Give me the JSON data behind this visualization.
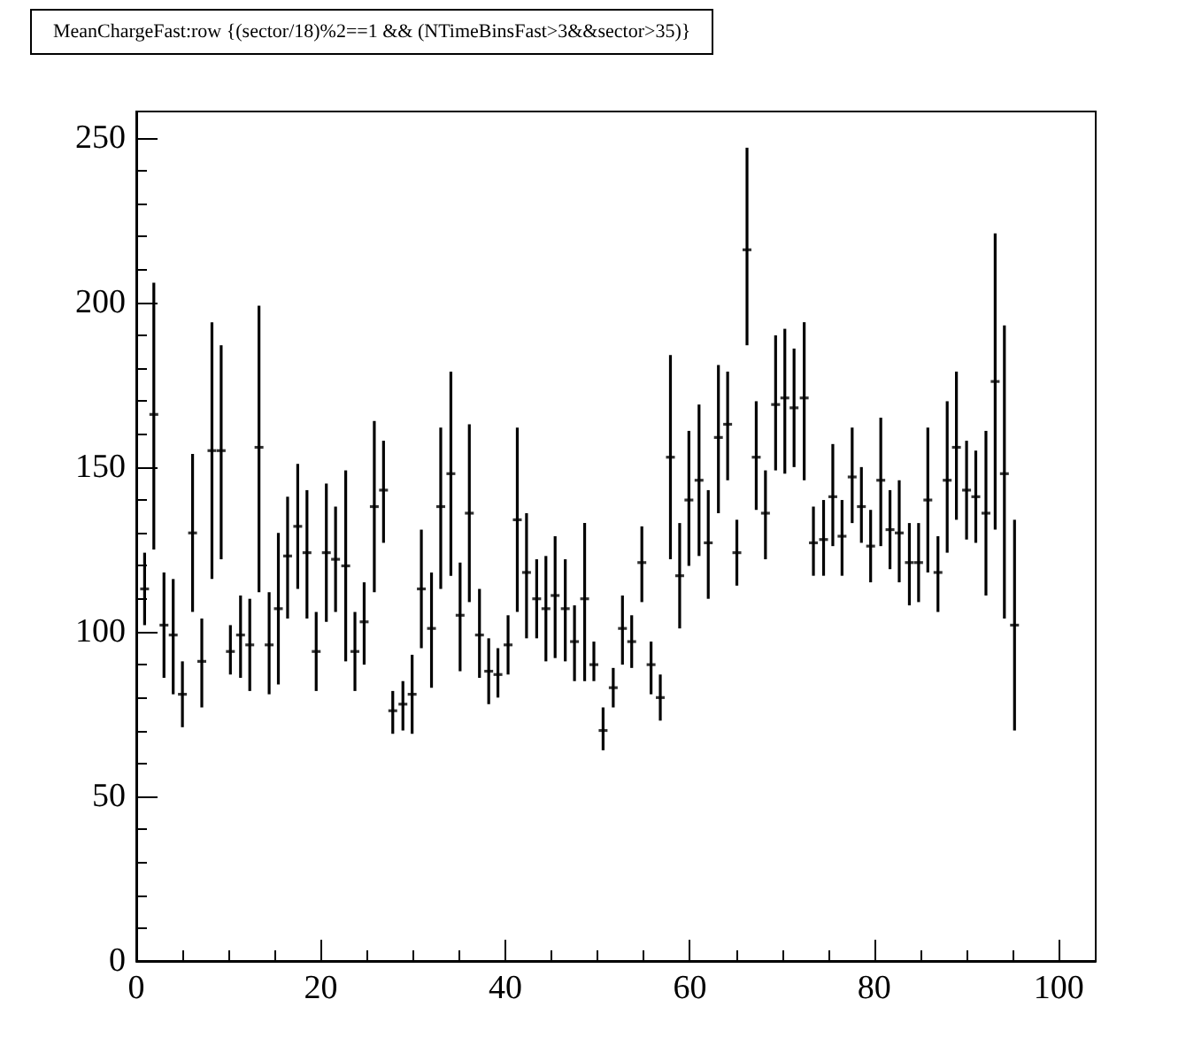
{
  "chart_data": {
    "type": "scatter",
    "title": "MeanChargeFast:row {(sector/18)%2==1 && (NTimeBinsFast>3&&sector>35)}",
    "color": "#000000",
    "x": [
      0.9,
      1.9,
      3.0,
      4.0,
      5.0,
      6.1,
      7.1,
      8.2,
      9.2,
      10.2,
      11.3,
      12.3,
      13.3,
      14.4,
      15.4,
      16.4,
      17.5,
      18.5,
      19.5,
      20.6,
      21.6,
      22.7,
      23.7,
      24.7,
      25.8,
      26.8,
      27.8,
      28.9,
      29.9,
      30.9,
      32.0,
      33.0,
      34.1,
      35.1,
      36.1,
      37.2,
      38.2,
      39.2,
      40.3,
      41.3,
      42.3,
      43.4,
      44.4,
      45.4,
      46.5,
      47.5,
      48.6,
      49.6,
      50.6,
      51.7,
      52.7,
      53.7,
      54.8,
      55.8,
      56.8,
      57.9,
      58.9,
      59.9,
      61.0,
      62.0,
      63.1,
      64.1,
      65.1,
      66.2,
      67.2,
      68.2,
      69.3,
      70.3,
      71.3,
      72.4,
      73.4,
      74.5,
      75.5,
      76.5,
      77.6,
      78.6,
      79.6,
      80.7,
      81.7,
      82.7,
      83.8,
      84.8,
      85.8,
      86.9,
      87.9,
      88.9,
      90.0,
      91.0,
      92.1,
      93.1,
      94.1,
      95.2
    ],
    "values": [
      113,
      166,
      102,
      99,
      81,
      130,
      91,
      155,
      155,
      94,
      99,
      96,
      156,
      96,
      107,
      123,
      132,
      124,
      94,
      124,
      122,
      120,
      94,
      103,
      138,
      143,
      76,
      78,
      81,
      113,
      101,
      138,
      148,
      105,
      136,
      99,
      88,
      87,
      96,
      134,
      118,
      110,
      107,
      111,
      107,
      97,
      110,
      90,
      70,
      83,
      101,
      97,
      121,
      90,
      80,
      153,
      117,
      140,
      146,
      127,
      159,
      163,
      124,
      216,
      153,
      136,
      169,
      171,
      168,
      171,
      127,
      128,
      141,
      129,
      147,
      138,
      126,
      146,
      131,
      130,
      121,
      121,
      140,
      118,
      146,
      156,
      143,
      141,
      136,
      176,
      148,
      102
    ],
    "errors": [
      [
        102,
        124
      ],
      [
        125,
        206
      ],
      [
        86,
        118
      ],
      [
        81,
        116
      ],
      [
        71,
        91
      ],
      [
        106,
        154
      ],
      [
        77,
        104
      ],
      [
        116,
        194
      ],
      [
        122,
        187
      ],
      [
        87,
        102
      ],
      [
        86,
        111
      ],
      [
        82,
        110
      ],
      [
        112,
        199
      ],
      [
        81,
        112
      ],
      [
        84,
        130
      ],
      [
        104,
        141
      ],
      [
        113,
        151
      ],
      [
        104,
        143
      ],
      [
        82,
        106
      ],
      [
        103,
        145
      ],
      [
        106,
        138
      ],
      [
        91,
        149
      ],
      [
        82,
        106
      ],
      [
        90,
        115
      ],
      [
        112,
        164
      ],
      [
        127,
        158
      ],
      [
        69,
        82
      ],
      [
        70,
        85
      ],
      [
        69,
        93
      ],
      [
        95,
        131
      ],
      [
        83,
        118
      ],
      [
        113,
        162
      ],
      [
        117,
        179
      ],
      [
        88,
        121
      ],
      [
        109,
        163
      ],
      [
        86,
        113
      ],
      [
        78,
        98
      ],
      [
        80,
        95
      ],
      [
        87,
        105
      ],
      [
        106,
        162
      ],
      [
        98,
        136
      ],
      [
        98,
        122
      ],
      [
        91,
        123
      ],
      [
        92,
        129
      ],
      [
        91,
        122
      ],
      [
        85,
        108
      ],
      [
        85,
        133
      ],
      [
        85,
        97
      ],
      [
        64,
        77
      ],
      [
        77,
        89
      ],
      [
        90,
        111
      ],
      [
        89,
        105
      ],
      [
        109,
        132
      ],
      [
        81,
        97
      ],
      [
        73,
        87
      ],
      [
        122,
        184
      ],
      [
        101,
        133
      ],
      [
        120,
        161
      ],
      [
        123,
        169
      ],
      [
        110,
        143
      ],
      [
        136,
        181
      ],
      [
        146,
        179
      ],
      [
        114,
        134
      ],
      [
        187,
        247
      ],
      [
        137,
        170
      ],
      [
        122,
        149
      ],
      [
        149,
        190
      ],
      [
        148,
        192
      ],
      [
        150,
        186
      ],
      [
        146,
        194
      ],
      [
        117,
        138
      ],
      [
        117,
        140
      ],
      [
        126,
        157
      ],
      [
        117,
        140
      ],
      [
        133,
        162
      ],
      [
        127,
        150
      ],
      [
        115,
        137
      ],
      [
        126,
        165
      ],
      [
        119,
        143
      ],
      [
        115,
        146
      ],
      [
        108,
        133
      ],
      [
        109,
        133
      ],
      [
        118,
        162
      ],
      [
        106,
        129
      ],
      [
        124,
        170
      ],
      [
        134,
        179
      ],
      [
        128,
        158
      ],
      [
        127,
        155
      ],
      [
        111,
        161
      ],
      [
        131,
        221
      ],
      [
        104,
        193
      ],
      [
        70,
        134
      ]
    ],
    "xlim": [
      0,
      104
    ],
    "ylim": [
      0,
      258
    ],
    "xticks": [
      0,
      20,
      40,
      60,
      80,
      100
    ],
    "yticks": [
      0,
      50,
      100,
      150,
      200,
      250
    ]
  }
}
